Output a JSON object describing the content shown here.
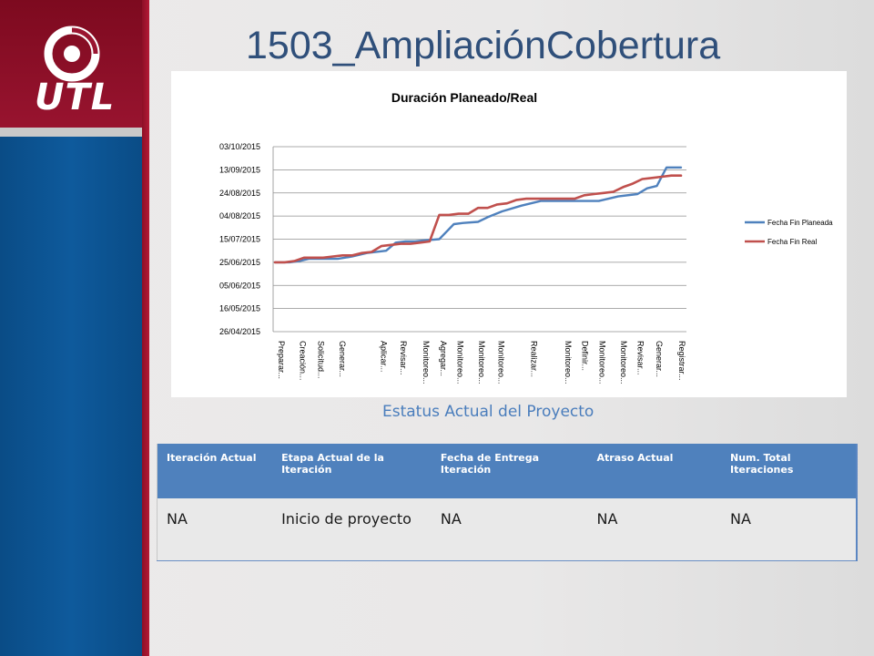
{
  "title": "1503_AmpliaciónCobertura",
  "logo": {
    "text": "UTL"
  },
  "chart_data": {
    "type": "line",
    "title": "Duración Planeado/Real",
    "xlabel": "",
    "ylabel": "",
    "y_ticks": [
      "03/10/2015",
      "13/09/2015",
      "24/08/2015",
      "04/08/2015",
      "15/07/2015",
      "25/06/2015",
      "05/06/2015",
      "16/05/2015",
      "26/04/2015"
    ],
    "ylim": [
      "26/04/2015",
      "03/10/2015"
    ],
    "x_tick_labels": [
      "Preparar...",
      "Creación...",
      "Solicitud...",
      "Generar...",
      "Aplicar...",
      "Revisar...",
      "Monitoreo...",
      "Agregar...",
      "Monitoreo...",
      "Monitoreo...",
      "Monitoreo...",
      "Realizar...",
      "Monitoreo...",
      "Definir...",
      "Monitoreo...",
      "Monitoreo...",
      "Revisar...",
      "Generar...",
      "Registrar..."
    ],
    "legend_position": "right",
    "grid": true,
    "series": [
      {
        "name": "Fecha Fin Planeada",
        "color": "#4f81bd",
        "x": [
          0,
          1.5,
          2.5,
          3.5,
          4.5,
          6.5,
          8,
          9.5,
          11.5,
          12.5,
          13.5,
          14.5,
          15.5,
          17,
          18.5,
          19.5,
          21,
          22,
          23.5,
          25.5,
          27.5,
          30,
          31.5,
          33.5,
          35.5,
          37.5,
          38.5,
          39.5,
          40.5,
          42
        ],
        "y": [
          "25/06/2015",
          "25/06/2015",
          "26/06/2015",
          "28/06/2015",
          "28/06/2015",
          "28/06/2015",
          "30/06/2015",
          "03/07/2015",
          "05/07/2015",
          "12/07/2015",
          "13/07/2015",
          "13/07/2015",
          "14/07/2015",
          "15/07/2015",
          "28/07/2015",
          "29/07/2015",
          "30/07/2015",
          "03/08/2015",
          "08/08/2015",
          "13/08/2015",
          "17/08/2015",
          "17/08/2015",
          "17/08/2015",
          "17/08/2015",
          "21/08/2015",
          "23/08/2015",
          "28/08/2015",
          "30/08/2015",
          "15/09/2015",
          "15/09/2015"
        ]
      },
      {
        "name": "Fecha Fin Real",
        "color": "#c0504d",
        "x": [
          0,
          1,
          2,
          3,
          4,
          5,
          6,
          7,
          8,
          9,
          10,
          11,
          12,
          13,
          14,
          15,
          16,
          17,
          18,
          19,
          20,
          21,
          22,
          23,
          24,
          25,
          26,
          27,
          28,
          29,
          30,
          31,
          32,
          33,
          34,
          35,
          36,
          37,
          38,
          39,
          40,
          41,
          42
        ],
        "y": [
          "25/06/2015",
          "25/06/2015",
          "26/06/2015",
          "29/06/2015",
          "29/06/2015",
          "29/06/2015",
          "30/06/2015",
          "01/07/2015",
          "01/07/2015",
          "03/07/2015",
          "04/07/2015",
          "09/07/2015",
          "10/07/2015",
          "11/07/2015",
          "11/07/2015",
          "12/07/2015",
          "13/07/2015",
          "05/08/2015",
          "05/08/2015",
          "06/08/2015",
          "06/08/2015",
          "11/08/2015",
          "11/08/2015",
          "14/08/2015",
          "15/08/2015",
          "18/08/2015",
          "19/08/2015",
          "19/08/2015",
          "19/08/2015",
          "19/08/2015",
          "19/08/2015",
          "19/08/2015",
          "22/08/2015",
          "23/08/2015",
          "24/08/2015",
          "25/08/2015",
          "29/08/2015",
          "01/09/2015",
          "05/09/2015",
          "06/09/2015",
          "07/09/2015",
          "08/09/2015",
          "08/09/2015"
        ]
      }
    ]
  },
  "status": {
    "heading": "Estatus Actual del Proyecto",
    "columns": [
      "Iteración Actual",
      "Etapa Actual de la Iteración",
      "Fecha de Entrega Iteración",
      "Atraso Actual",
      "Num. Total Iteraciones"
    ],
    "rows": [
      [
        "NA",
        "Inicio de proyecto",
        "NA",
        "NA",
        "NA"
      ]
    ]
  }
}
